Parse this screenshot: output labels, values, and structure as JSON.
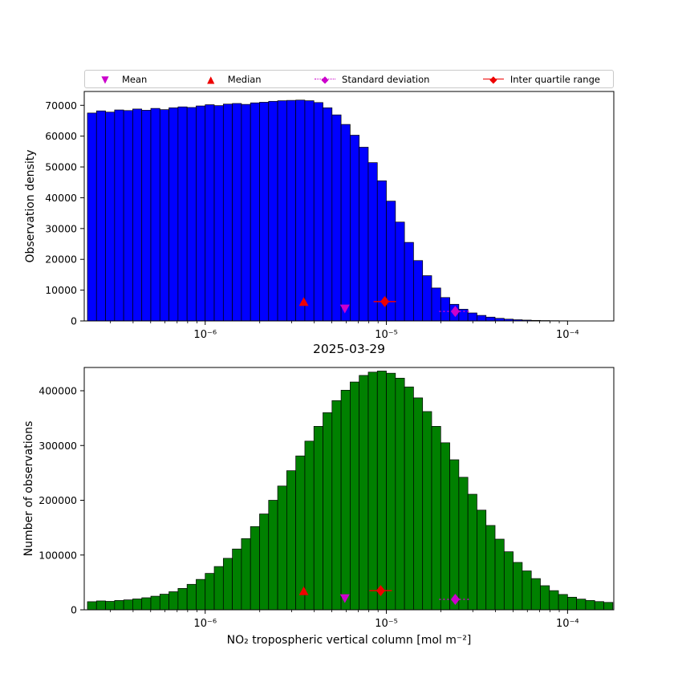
{
  "figure": {
    "legend": {
      "items": [
        {
          "label": "Mean",
          "marker": "triangle-down",
          "color": "#cc00cc",
          "line": "none"
        },
        {
          "label": "Median",
          "marker": "triangle-up",
          "color": "#ee0000",
          "line": "none"
        },
        {
          "label": "Standard deviation",
          "marker": "diamond",
          "color": "#cc00cc",
          "line": "dotted"
        },
        {
          "label": "Inter quartile range",
          "marker": "diamond",
          "color": "#ee0000",
          "line": "solid"
        }
      ]
    }
  },
  "chart_data": [
    {
      "type": "bar",
      "title": "",
      "xlabel": "2025-03-29",
      "ylabel": "Observation density",
      "x_scale": "log",
      "xlim": [
        2.15e-07,
        0.00018
      ],
      "ylim": [
        0,
        74500
      ],
      "yticks": [
        0,
        10000,
        20000,
        30000,
        40000,
        50000,
        60000,
        70000
      ],
      "xticks": [
        {
          "value": 1e-06,
          "label": "10⁻⁶"
        },
        {
          "value": 1e-05,
          "label": "10⁻⁵"
        },
        {
          "value": 0.0001,
          "label": "10⁻⁴"
        }
      ],
      "bar_color": "#0000ff",
      "bar_edge": "#000000",
      "bins_log10_start": -6.65,
      "bins_log10_width": 0.05,
      "values": [
        67500,
        68200,
        67800,
        68500,
        68300,
        68800,
        68400,
        69000,
        68600,
        69200,
        69500,
        69300,
        69800,
        70200,
        69900,
        70400,
        70600,
        70300,
        70800,
        71000,
        71300,
        71500,
        71600,
        71700,
        71500,
        70900,
        69200,
        66900,
        63800,
        60300,
        56400,
        51400,
        45500,
        38900,
        32100,
        25500,
        19600,
        14700,
        10700,
        7600,
        5400,
        3800,
        2600,
        1800,
        1240,
        850,
        580,
        390,
        270,
        180,
        125,
        85,
        60,
        40,
        30,
        20,
        15,
        10
      ],
      "markers": [
        {
          "name": "median",
          "shape": "triangle-up",
          "color": "#ee0000",
          "x": 3.5e-06,
          "y": 6200,
          "line": "none"
        },
        {
          "name": "mean",
          "shape": "triangle-down",
          "color": "#cc00cc",
          "x": 5.9e-06,
          "y": 4000,
          "line": "none"
        },
        {
          "name": "iqr",
          "shape": "diamond",
          "color": "#ee0000",
          "x": 9.8e-06,
          "y": 6300,
          "line": "solid"
        },
        {
          "name": "std",
          "shape": "diamond",
          "color": "#cc00cc",
          "x": 2.4e-05,
          "y": 3100,
          "line": "dotted"
        }
      ]
    },
    {
      "type": "bar",
      "title": "",
      "xlabel": "NO₂ tropospheric vertical column [mol m⁻²]",
      "ylabel": "Number of observations",
      "x_scale": "log",
      "xlim": [
        2.15e-07,
        0.00018
      ],
      "ylim": [
        0,
        442500
      ],
      "yticks": [
        0,
        100000,
        200000,
        300000,
        400000
      ],
      "xticks": [
        {
          "value": 1e-06,
          "label": "10⁻⁶"
        },
        {
          "value": 1e-05,
          "label": "10⁻⁵"
        },
        {
          "value": 0.0001,
          "label": "10⁻⁴"
        }
      ],
      "bar_color": "#008000",
      "bar_edge": "#000000",
      "bins_log10_start": -6.65,
      "bins_log10_width": 0.05,
      "values": [
        14800,
        16200,
        15400,
        17000,
        18100,
        19800,
        22000,
        24800,
        28500,
        33000,
        39000,
        46500,
        55500,
        66500,
        79000,
        94000,
        111000,
        130000,
        152000,
        175000,
        200000,
        226000,
        254000,
        281000,
        308000,
        335000,
        360000,
        382000,
        401000,
        416000,
        428000,
        434000,
        436000,
        432000,
        423000,
        407000,
        387000,
        362000,
        335000,
        305000,
        274000,
        242000,
        211000,
        182000,
        154000,
        129000,
        106000,
        86500,
        71000,
        57000,
        44000,
        35000,
        28000,
        23000,
        19500,
        17000,
        15000,
        13500
      ],
      "markers": [
        {
          "name": "median",
          "shape": "triangle-up",
          "color": "#ee0000",
          "x": 3.5e-06,
          "y": 34000,
          "line": "none"
        },
        {
          "name": "mean",
          "shape": "triangle-down",
          "color": "#cc00cc",
          "x": 5.9e-06,
          "y": 21000,
          "line": "none"
        },
        {
          "name": "iqr",
          "shape": "diamond",
          "color": "#ee0000",
          "x": 9.3e-06,
          "y": 35000,
          "line": "solid"
        },
        {
          "name": "std",
          "shape": "diamond",
          "color": "#cc00cc",
          "x": 2.4e-05,
          "y": 19000,
          "line": "dotted"
        }
      ]
    }
  ]
}
